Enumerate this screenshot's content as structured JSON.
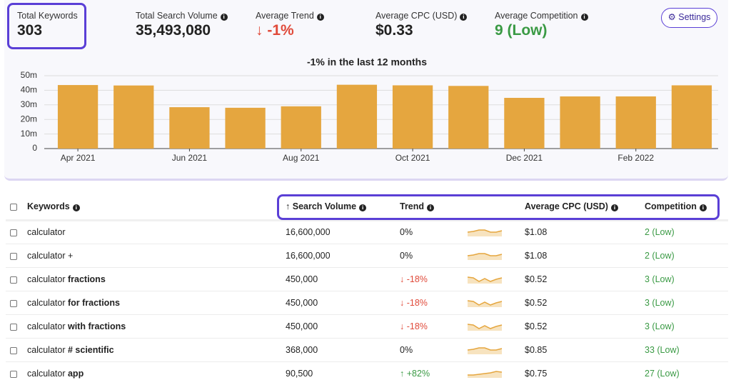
{
  "stats": [
    {
      "label": "Total Keywords",
      "value": "303"
    },
    {
      "label": "Total Search Volume",
      "value": "35,493,080"
    },
    {
      "label": "Average Trend",
      "value": "-1%"
    },
    {
      "label": "Average CPC (USD)",
      "value": "$0.33"
    },
    {
      "label": "Average Competition",
      "value": "9 (Low)"
    }
  ],
  "settings": "Settings",
  "chart_data": {
    "type": "bar",
    "title": "-1% in the last 12 months",
    "categories": [
      "Apr 2021",
      null,
      "Jun 2021",
      null,
      "Aug 2021",
      null,
      "Oct 2021",
      null,
      "Dec 2021",
      null,
      "Feb 2022",
      null
    ],
    "values": [
      43600000,
      43300000,
      28400000,
      28000000,
      29000000,
      43800000,
      43400000,
      43000000,
      34800000,
      35800000,
      35800000,
      43400000
    ],
    "color": "#e5a63f",
    "ylim": [
      0,
      50000000
    ],
    "yticks": [
      0,
      {
        "value": 10000000,
        "label": "10m"
      },
      {
        "value": 20000000,
        "label": "20m"
      },
      {
        "value": 30000000,
        "label": "30m"
      },
      {
        "value": 40000000,
        "label": "40m"
      },
      {
        "value": 50000000,
        "label": "50m"
      }
    ],
    "grid": true
  },
  "table": {
    "headers": [
      "Keywords",
      "Search Volume",
      "Trend",
      "Average CPC (USD)",
      "Competition"
    ],
    "rows": [
      {
        "keyword": {
          "base": "calculator"
        },
        "volume": "16,600,000",
        "trend": "0%",
        "cpc": "$1.08",
        "competition": "2 (Low)"
      },
      {
        "keyword": {
          "base": "calculator +"
        },
        "volume": "16,600,000",
        "trend": "0%",
        "cpc": "$1.08",
        "competition": "2 (Low)"
      },
      {
        "keyword": {
          "base": "calculator",
          "suffix": "fractions"
        },
        "volume": "450,000",
        "trend": "-18%",
        "cpc": "$0.52",
        "competition": "3 (Low)"
      },
      {
        "keyword": {
          "base": "calculator",
          "suffix": "for fractions"
        },
        "volume": "450,000",
        "trend": "-18%",
        "cpc": "$0.52",
        "competition": "3 (Low)"
      },
      {
        "keyword": {
          "base": "calculator",
          "suffix": "with fractions"
        },
        "volume": "450,000",
        "trend": "-18%",
        "cpc": "$0.52",
        "competition": "3 (Low)"
      },
      {
        "keyword": {
          "base": "calculator",
          "suffix": "# scientific"
        },
        "volume": "368,000",
        "trend": "0%",
        "cpc": "$0.85",
        "competition": "33 (Low)"
      },
      {
        "keyword": {
          "base": "calculator",
          "suffix": "app"
        },
        "volume": "90,500",
        "trend": "+82%",
        "cpc": "$0.75",
        "competition": "27 (Low)"
      }
    ]
  }
}
